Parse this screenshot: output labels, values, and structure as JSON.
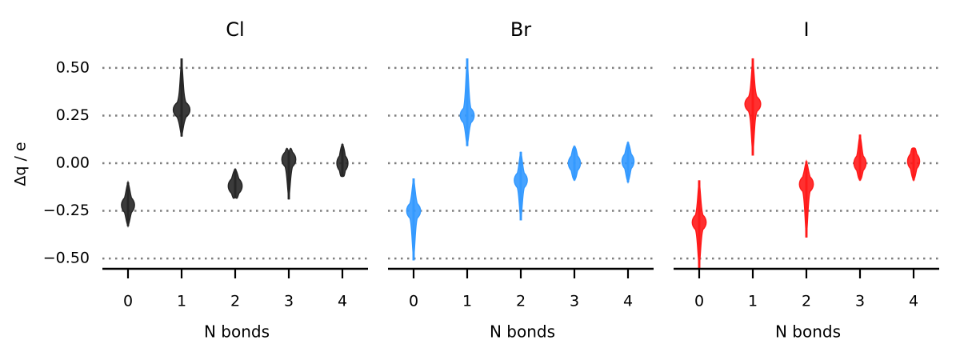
{
  "chart_data": {
    "type": "violin",
    "ylabel": "Δq / e",
    "ylim": [
      -0.55,
      0.55
    ],
    "yticks": [
      0.5,
      0.25,
      0.0,
      -0.25,
      -0.5
    ],
    "ytick_labels": [
      "0.50",
      "0.25",
      "0.00",
      "−0.25",
      "−0.50"
    ],
    "grid": "horizontal dotted",
    "panels": [
      {
        "title": "Cl",
        "color": "#262626",
        "xlabel": "N bonds",
        "categories": [
          "0",
          "1",
          "2",
          "3",
          "4"
        ],
        "violins": [
          {
            "x": 0,
            "center": -0.22,
            "min": -0.33,
            "max": -0.1,
            "width": 0.28
          },
          {
            "x": 1,
            "center": 0.28,
            "min": 0.14,
            "max": 0.55,
            "width": 0.36
          },
          {
            "x": 2,
            "center": -0.12,
            "min": -0.18,
            "max": -0.03,
            "width": 0.3
          },
          {
            "x": 3,
            "center": 0.02,
            "min": -0.19,
            "max": 0.06,
            "width": 0.3
          },
          {
            "x": 4,
            "center": 0.0,
            "min": -0.07,
            "max": 0.1,
            "width": 0.24
          }
        ]
      },
      {
        "title": "Br",
        "color": "#3399ff",
        "xlabel": "N bonds",
        "categories": [
          "0",
          "1",
          "2",
          "3",
          "4"
        ],
        "violins": [
          {
            "x": 0,
            "center": -0.25,
            "min": -0.51,
            "max": -0.08,
            "width": 0.3
          },
          {
            "x": 1,
            "center": 0.25,
            "min": 0.09,
            "max": 0.55,
            "width": 0.3
          },
          {
            "x": 2,
            "center": -0.09,
            "min": -0.3,
            "max": 0.06,
            "width": 0.28
          },
          {
            "x": 3,
            "center": 0.0,
            "min": -0.09,
            "max": 0.09,
            "width": 0.26
          },
          {
            "x": 4,
            "center": 0.01,
            "min": -0.1,
            "max": 0.11,
            "width": 0.26
          }
        ]
      },
      {
        "title": "I",
        "color": "#ff1a1a",
        "xlabel": "N bonds",
        "categories": [
          "0",
          "1",
          "2",
          "3",
          "4"
        ],
        "violins": [
          {
            "x": 0,
            "center": -0.31,
            "min": -0.55,
            "max": -0.09,
            "width": 0.3
          },
          {
            "x": 1,
            "center": 0.31,
            "min": 0.04,
            "max": 0.55,
            "width": 0.34
          },
          {
            "x": 2,
            "center": -0.11,
            "min": -0.39,
            "max": 0.01,
            "width": 0.3
          },
          {
            "x": 3,
            "center": 0.0,
            "min": -0.09,
            "max": 0.15,
            "width": 0.26
          },
          {
            "x": 4,
            "center": 0.01,
            "min": -0.09,
            "max": 0.08,
            "width": 0.26
          }
        ]
      }
    ]
  }
}
